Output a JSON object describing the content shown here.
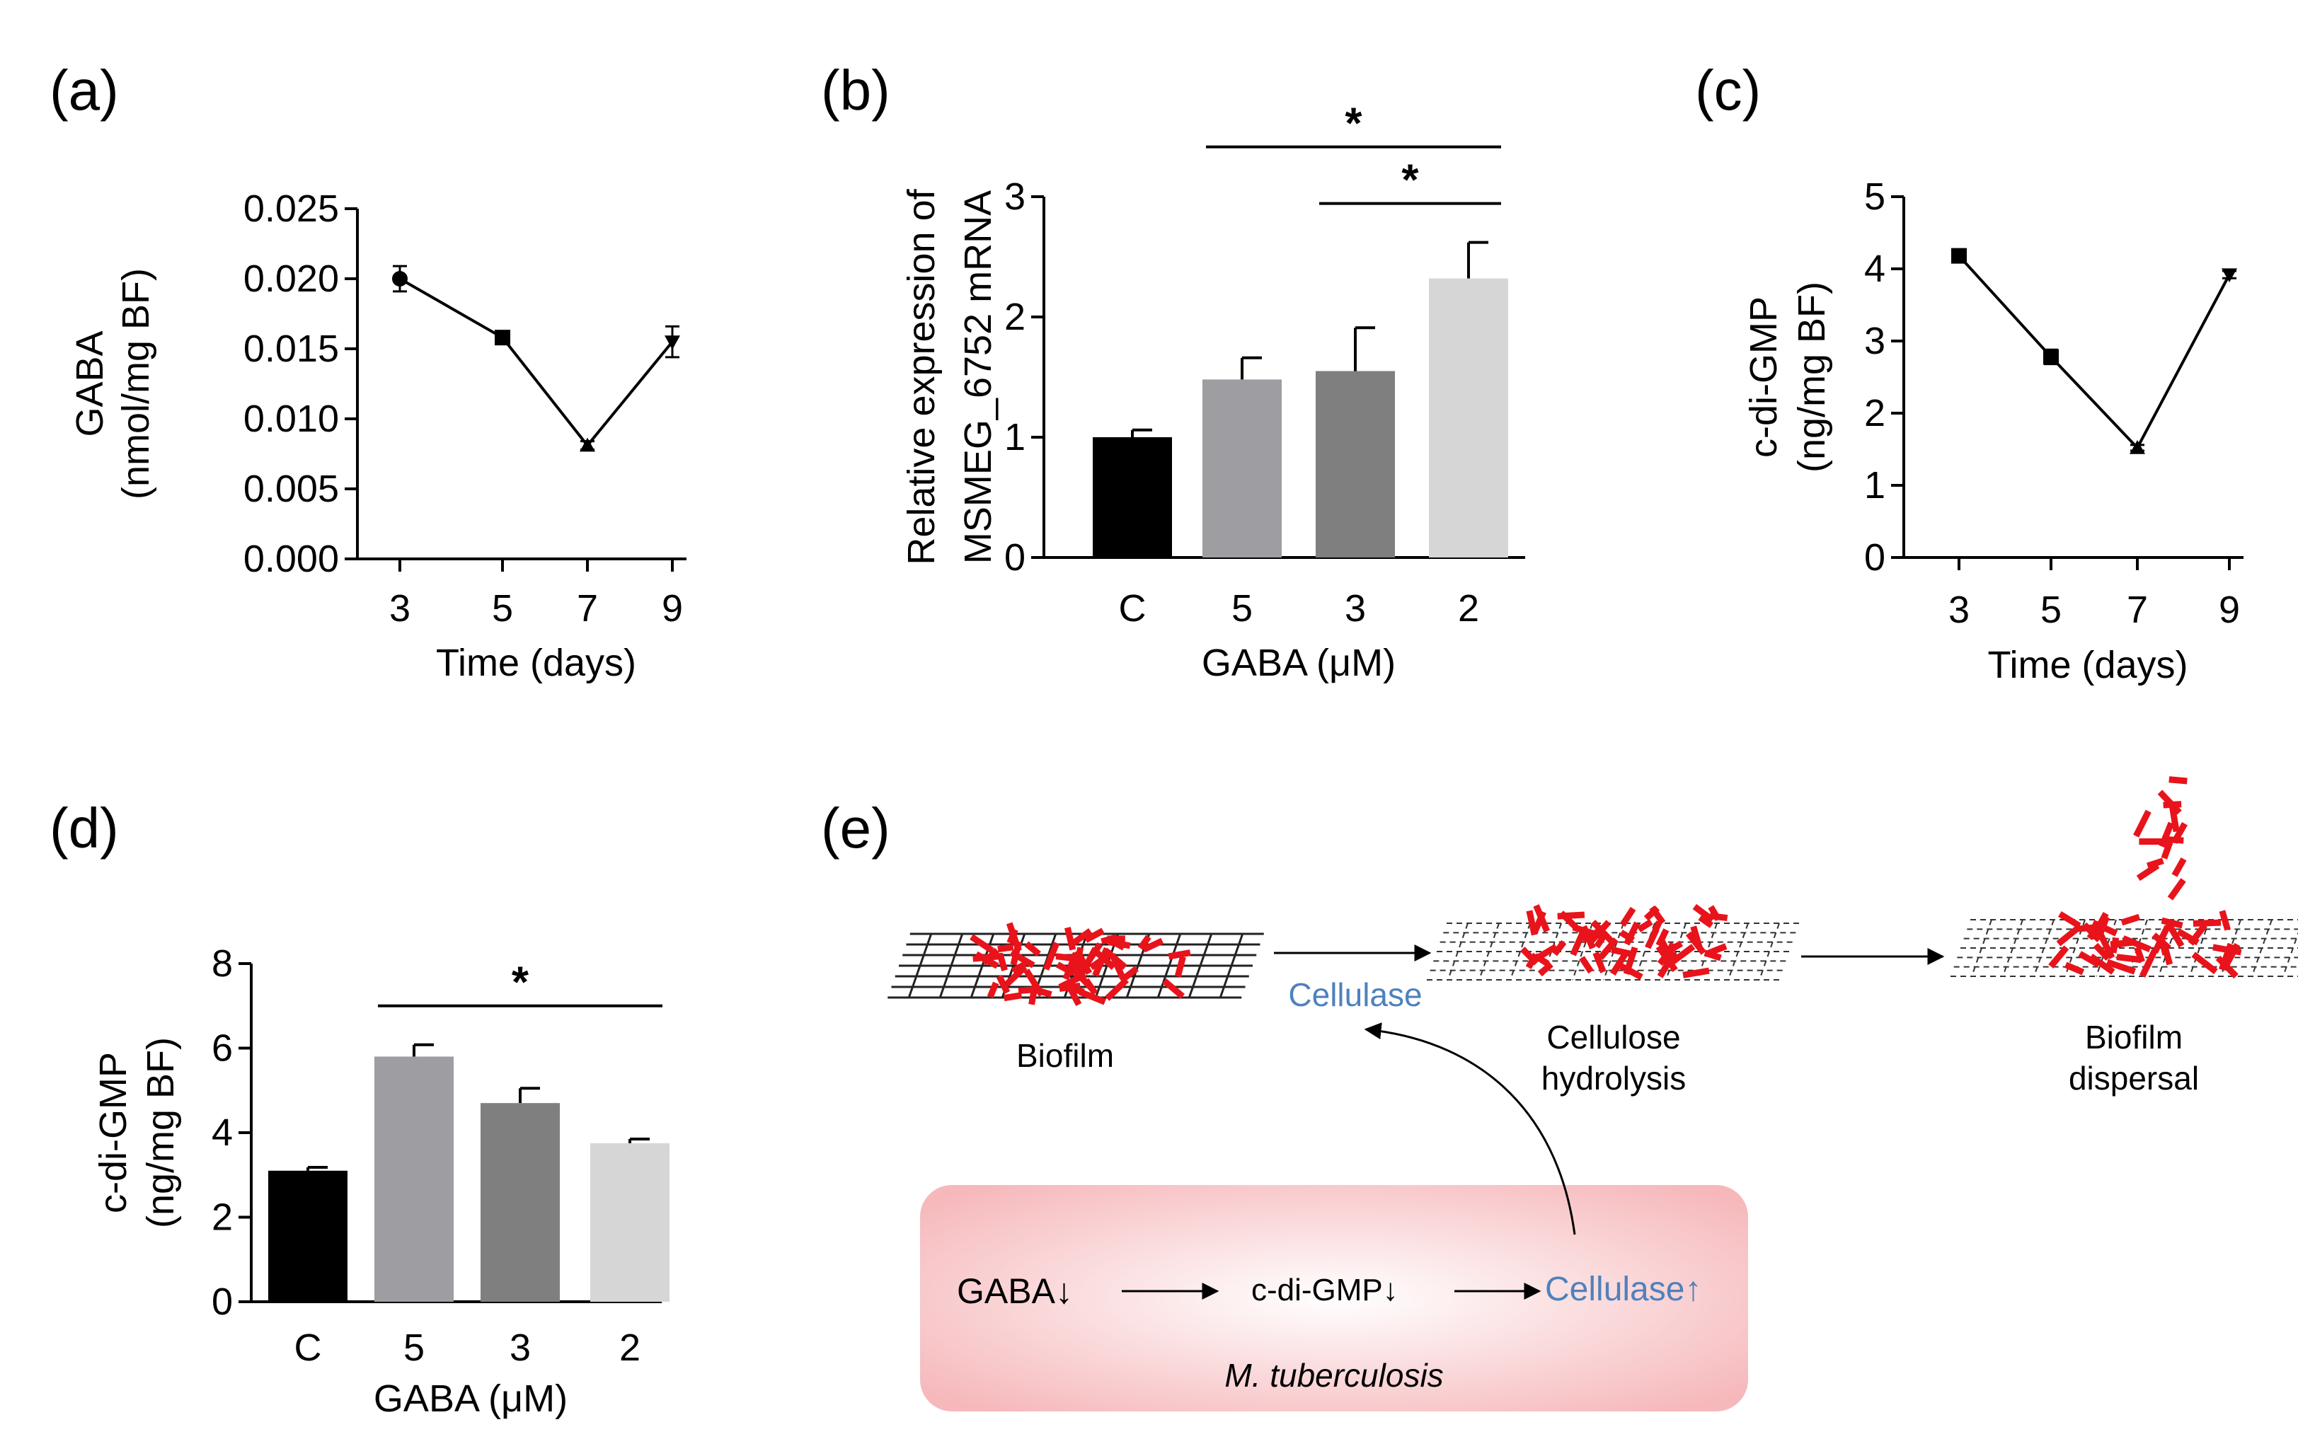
{
  "panels": {
    "a": "(a)",
    "b": "(b)",
    "c": "(c)",
    "d": "(d)",
    "e": "(e)"
  },
  "chart_data": [
    {
      "id": "a",
      "type": "line",
      "xlabel": "Time (days)",
      "ylabel_line1": "GABA",
      "ylabel_line2": "(nmol/mg BF)",
      "x": [
        3,
        5,
        7,
        9
      ],
      "y": [
        0.02,
        0.0158,
        0.0081,
        0.0155
      ],
      "err": [
        0.0009,
        0.0003,
        0.0003,
        0.0011
      ],
      "markers": [
        "circle",
        "square",
        "triangle-up",
        "triangle-down"
      ],
      "ylim": [
        0,
        0.025
      ],
      "yticks": [
        "0.000",
        "0.005",
        "0.010",
        "0.015",
        "0.020",
        "0.025"
      ],
      "xticks": [
        "3",
        "5",
        "7",
        "9"
      ]
    },
    {
      "id": "b",
      "type": "bar",
      "xlabel": "GABA (μM)",
      "ylabel_line1": "Relative expression of",
      "ylabel_line2": "MSMEG_6752 mRNA",
      "categories": [
        "C",
        "5",
        "3",
        "2"
      ],
      "values": [
        1.0,
        1.48,
        1.55,
        2.32
      ],
      "err": [
        0.06,
        0.18,
        0.36,
        0.3
      ],
      "colors": [
        "#000000",
        "#9d9da2",
        "#7f7f7f",
        "#d6d6d6"
      ],
      "ylim": [
        0,
        3
      ],
      "yticks": [
        "0",
        "1",
        "2",
        "3"
      ],
      "significance": [
        {
          "from": 1,
          "to": 3,
          "label": "*"
        },
        {
          "from": 2,
          "to": 3,
          "label": "*"
        }
      ]
    },
    {
      "id": "c",
      "type": "line",
      "xlabel": "Time (days)",
      "ylabel_line1": "c-di-GMP",
      "ylabel_line2": "(ng/mg BF)",
      "x": [
        3,
        5,
        7,
        9
      ],
      "y": [
        4.18,
        2.78,
        1.52,
        3.92
      ],
      "err": [
        0.06,
        0.1,
        0.04,
        0.05
      ],
      "markers": [
        "square",
        "square",
        "triangle-up",
        "triangle-down"
      ],
      "ylim": [
        0,
        5
      ],
      "yticks": [
        "0",
        "1",
        "2",
        "3",
        "4",
        "5"
      ],
      "xticks": [
        "3",
        "5",
        "7",
        "9"
      ]
    },
    {
      "id": "d",
      "type": "bar",
      "xlabel": "GABA (μM)",
      "ylabel_line1": "c-di-GMP",
      "ylabel_line2": "(ng/mg BF)",
      "categories": [
        "C",
        "5",
        "3",
        "2"
      ],
      "values": [
        3.1,
        5.8,
        4.7,
        3.75
      ],
      "err": [
        0.08,
        0.28,
        0.35,
        0.1
      ],
      "colors": [
        "#000000",
        "#9d9da2",
        "#7f7f7f",
        "#d6d6d6"
      ],
      "ylim": [
        0,
        8
      ],
      "yticks": [
        "0",
        "2",
        "4",
        "6",
        "8"
      ],
      "significance": [
        {
          "from": 1,
          "to": 3,
          "label": "*"
        }
      ]
    }
  ],
  "scheme": {
    "biofilm": "Biofilm",
    "cellulase_top": "Cellulase",
    "hydrolysis_line1": "Cellulose",
    "hydrolysis_line2": "hydrolysis",
    "dispersal_line1": "Biofilm",
    "dispersal_line2": "dispersal",
    "gaba": "GABA↓",
    "cdigmp": "c-di-GMP↓",
    "cellulase_bottom": "Cellulase↑",
    "organism": "M. tuberculosis",
    "red": "#e8131b",
    "blue": "#4f81bd",
    "box_pink": "#f7b9bc"
  }
}
